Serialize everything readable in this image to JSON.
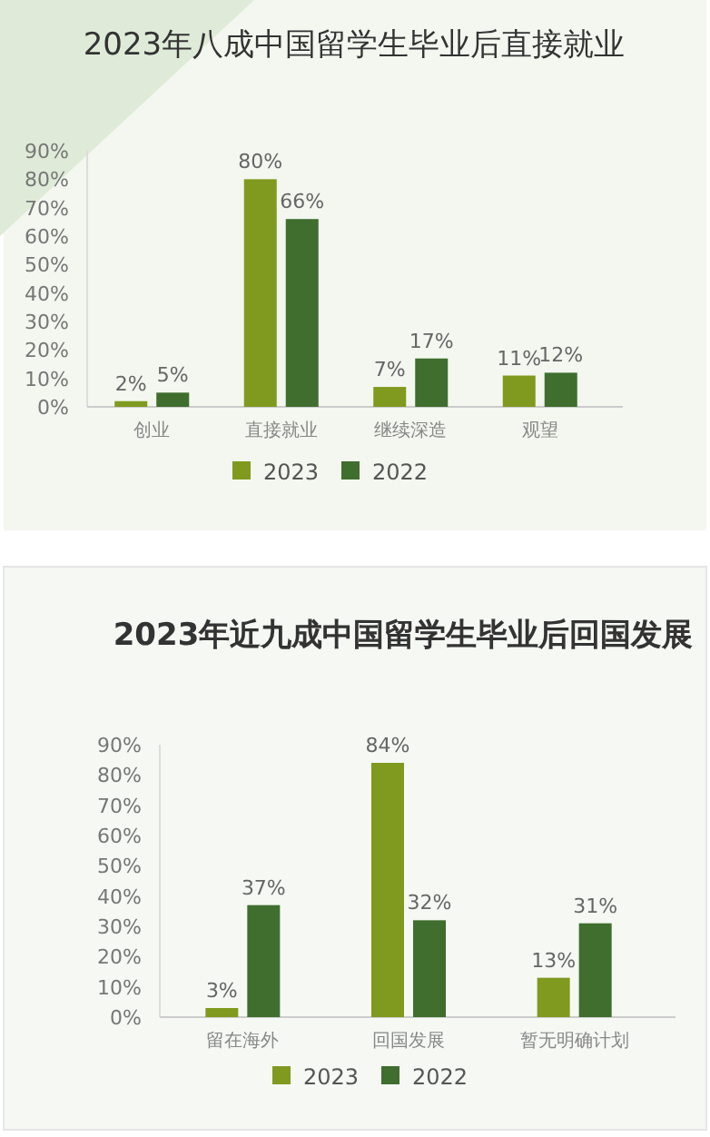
{
  "chart_data": [
    {
      "type": "bar",
      "title": "2023年八成中国留学生毕业后直接就业",
      "categories": [
        "创业",
        "直接就业",
        "继续深造",
        "观望"
      ],
      "series": [
        {
          "name": "2023",
          "color": "#7f9a1e",
          "values": [
            2,
            80,
            7,
            11
          ],
          "value_labels": [
            "2%",
            "80%",
            "7%",
            "11%"
          ]
        },
        {
          "name": "2022",
          "color": "#3f6e2e",
          "values": [
            5,
            66,
            17,
            12
          ],
          "value_labels": [
            "5%",
            "66%",
            "17%",
            "12%"
          ]
        }
      ],
      "ylim": [
        0,
        90
      ],
      "yticks": [
        {
          "value": 0,
          "label": "0%"
        },
        {
          "value": 10,
          "label": "10%"
        },
        {
          "value": 20,
          "label": "20%"
        },
        {
          "value": 30,
          "label": "30%"
        },
        {
          "value": 40,
          "label": "40%"
        },
        {
          "value": 50,
          "label": "50%"
        },
        {
          "value": 60,
          "label": "60%"
        },
        {
          "value": 70,
          "label": "70%"
        },
        {
          "value": 80,
          "label": "80%"
        },
        {
          "value": 90,
          "label": "90%"
        }
      ],
      "legend": "bottom"
    },
    {
      "type": "bar",
      "title": "2023年近九成中国留学生毕业后回国发展",
      "categories": [
        "留在海外",
        "回国发展",
        "暂无明确计划"
      ],
      "series": [
        {
          "name": "2023",
          "color": "#7f9a1e",
          "values": [
            3,
            84,
            13
          ],
          "value_labels": [
            "3%",
            "84%",
            "13%"
          ]
        },
        {
          "name": "2022",
          "color": "#3f6e2e",
          "values": [
            37,
            32,
            31
          ],
          "value_labels": [
            "37%",
            "32%",
            "31%"
          ]
        }
      ],
      "ylim": [
        0,
        90
      ],
      "yticks": [
        {
          "value": 0,
          "label": "0%"
        },
        {
          "value": 10,
          "label": "10%"
        },
        {
          "value": 20,
          "label": "20%"
        },
        {
          "value": 30,
          "label": "30%"
        },
        {
          "value": 40,
          "label": "40%"
        },
        {
          "value": 50,
          "label": "50%"
        },
        {
          "value": 60,
          "label": "60%"
        },
        {
          "value": 70,
          "label": "70%"
        },
        {
          "value": 80,
          "label": "80%"
        },
        {
          "value": 90,
          "label": "90%"
        }
      ],
      "legend": "bottom"
    }
  ]
}
